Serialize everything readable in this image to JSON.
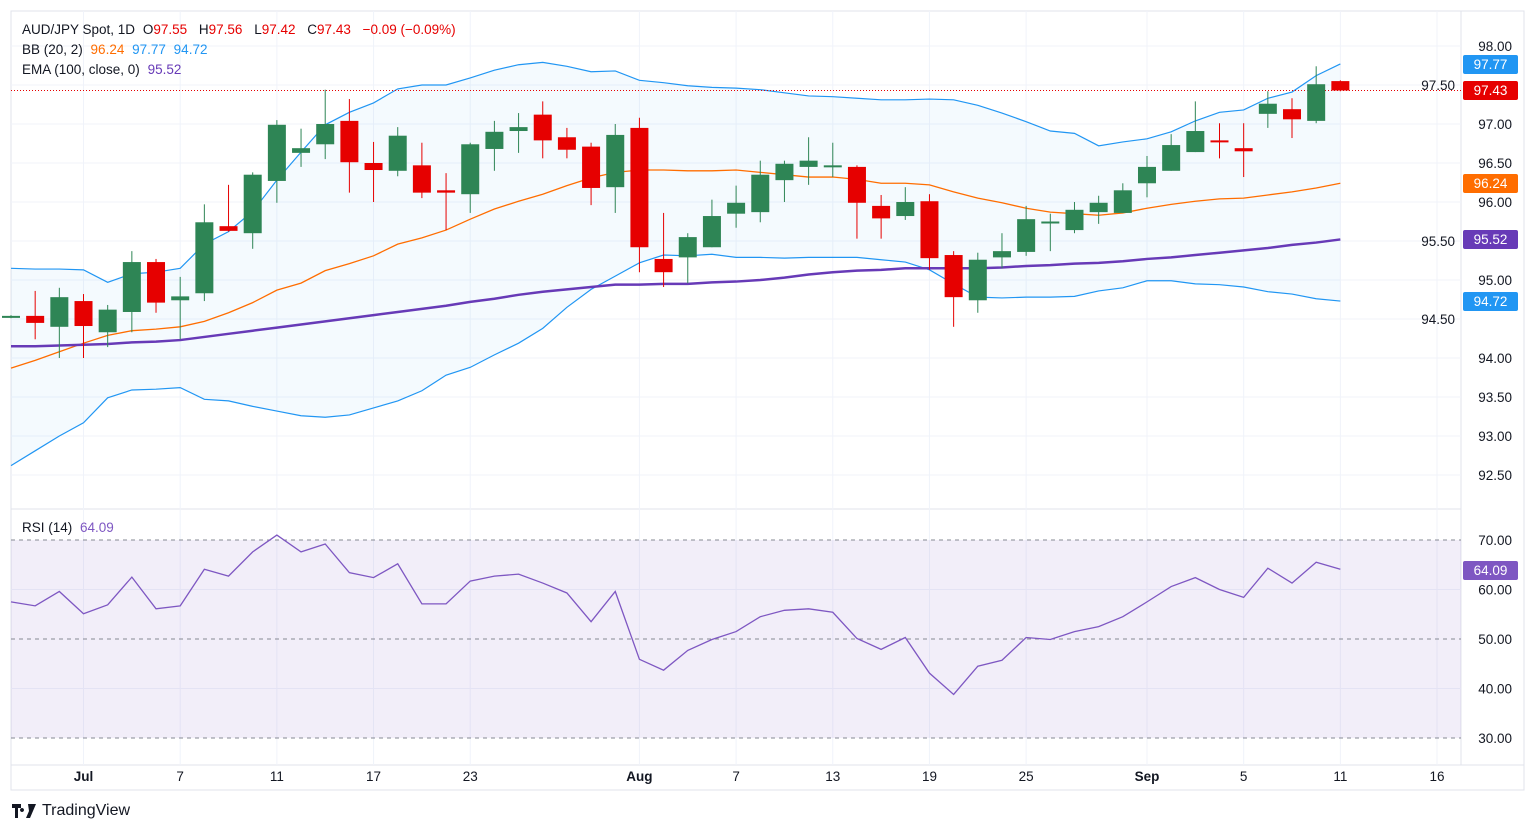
{
  "header": {
    "symbol": "AUD/JPY Spot, 1D",
    "open_label": "O",
    "open": "97.55",
    "high_label": "H",
    "high": "97.56",
    "low_label": "L",
    "low": "97.42",
    "close_label": "C",
    "close": "97.43",
    "change": "−0.09 (−0.09%)"
  },
  "indicators": {
    "bb": {
      "label": "BB (20, 2)",
      "basis": "96.24",
      "upper": "97.77",
      "lower": "94.72"
    },
    "ema": {
      "label": "EMA (100, close, 0)",
      "value": "95.52"
    },
    "rsi": {
      "label": "RSI (14)",
      "value": "64.09"
    }
  },
  "price_labels": {
    "upper": "97.77",
    "close": "97.43",
    "basis": "96.24",
    "ema": "95.52",
    "lower": "94.72",
    "rsi": "64.09"
  },
  "colors": {
    "up": "#2e8555",
    "down": "#e60000",
    "bb_upper_lower": "#2196f3",
    "bb_basis": "#ff6d00",
    "ema": "#673ab7",
    "rsi": "#7e57c2"
  },
  "logo": {
    "text": "TradingView"
  },
  "chart_data": [
    {
      "type": "candlestick",
      "title": "AUD/JPY Spot, 1D",
      "ylim": [
        92.2,
        98.3
      ],
      "y_ticks": [
        "98.00",
        "97.50",
        "97.00",
        "96.50",
        "96.00",
        "95.50",
        "95.00",
        "94.50",
        "94.00",
        "93.50",
        "93.00",
        "92.50"
      ],
      "x_ticks": [
        {
          "label": "Jul",
          "bar": 3,
          "bold": true
        },
        {
          "label": "7",
          "bar": 7
        },
        {
          "label": "11",
          "bar": 11
        },
        {
          "label": "17",
          "bar": 15
        },
        {
          "label": "23",
          "bar": 19
        },
        {
          "label": "Aug",
          "bar": 26,
          "bold": true
        },
        {
          "label": "7",
          "bar": 30
        },
        {
          "label": "13",
          "bar": 34
        },
        {
          "label": "19",
          "bar": 38
        },
        {
          "label": "25",
          "bar": 42
        },
        {
          "label": "Sep",
          "bar": 47,
          "bold": true
        },
        {
          "label": "5",
          "bar": 51
        },
        {
          "label": "11",
          "bar": 55
        },
        {
          "label": "16",
          "bar": 59
        }
      ],
      "ohlc": [
        [
          94.52,
          94.55,
          94.51,
          94.54
        ],
        [
          94.54,
          94.86,
          94.24,
          94.45
        ],
        [
          94.4,
          94.9,
          94.0,
          94.78
        ],
        [
          94.73,
          94.82,
          94.0,
          94.41
        ],
        [
          94.33,
          94.68,
          94.14,
          94.62
        ],
        [
          94.59,
          95.37,
          94.33,
          95.23
        ],
        [
          95.23,
          95.27,
          94.58,
          94.71
        ],
        [
          94.74,
          95.04,
          94.24,
          94.79
        ],
        [
          94.83,
          95.97,
          94.73,
          95.74
        ],
        [
          95.69,
          96.22,
          95.62,
          95.63
        ],
        [
          95.6,
          96.38,
          95.4,
          96.35
        ],
        [
          96.27,
          97.05,
          95.99,
          96.99
        ],
        [
          96.63,
          96.94,
          96.45,
          96.69
        ],
        [
          96.74,
          97.44,
          96.55,
          97.0
        ],
        [
          97.04,
          97.32,
          96.12,
          96.51
        ],
        [
          96.5,
          96.77,
          96.0,
          96.41
        ],
        [
          96.4,
          96.96,
          96.33,
          96.85
        ],
        [
          96.47,
          96.76,
          96.05,
          96.12
        ],
        [
          96.15,
          96.37,
          95.64,
          96.12
        ],
        [
          96.1,
          96.76,
          95.86,
          96.74
        ],
        [
          96.68,
          97.04,
          96.4,
          96.9
        ],
        [
          96.91,
          97.14,
          96.63,
          96.96
        ],
        [
          97.12,
          97.29,
          96.56,
          96.79
        ],
        [
          96.83,
          96.95,
          96.56,
          96.67
        ],
        [
          96.71,
          96.76,
          95.96,
          96.18
        ],
        [
          96.19,
          97.0,
          95.86,
          96.86
        ],
        [
          96.95,
          97.08,
          95.1,
          95.42
        ],
        [
          95.27,
          95.86,
          94.91,
          95.1
        ],
        [
          95.29,
          95.6,
          94.96,
          95.55
        ],
        [
          95.42,
          96.03,
          95.42,
          95.82
        ],
        [
          95.85,
          96.21,
          95.67,
          95.99
        ],
        [
          95.87,
          96.53,
          95.74,
          96.35
        ],
        [
          96.28,
          96.53,
          96.0,
          96.49
        ],
        [
          96.45,
          96.83,
          96.22,
          96.53
        ],
        [
          96.45,
          96.76,
          96.32,
          96.47
        ],
        [
          96.45,
          96.47,
          95.53,
          95.99
        ],
        [
          95.95,
          96.09,
          95.53,
          95.79
        ],
        [
          95.82,
          96.19,
          95.77,
          96.0
        ],
        [
          96.01,
          96.1,
          95.13,
          95.28
        ],
        [
          95.32,
          95.37,
          94.4,
          94.78
        ],
        [
          94.74,
          95.35,
          94.58,
          95.26
        ],
        [
          95.29,
          95.6,
          95.15,
          95.37
        ],
        [
          95.36,
          95.95,
          95.31,
          95.78
        ],
        [
          95.75,
          95.85,
          95.37,
          95.75
        ],
        [
          95.64,
          96.0,
          95.6,
          95.9
        ],
        [
          95.87,
          96.08,
          95.72,
          95.99
        ],
        [
          95.86,
          96.24,
          95.86,
          96.15
        ],
        [
          96.24,
          96.59,
          96.06,
          96.45
        ],
        [
          96.4,
          96.87,
          96.4,
          96.73
        ],
        [
          96.64,
          97.29,
          96.64,
          96.91
        ],
        [
          96.79,
          97.01,
          96.56,
          96.78
        ],
        [
          96.69,
          97.01,
          96.32,
          96.65
        ],
        [
          97.13,
          97.42,
          96.95,
          97.26
        ],
        [
          97.19,
          97.33,
          96.82,
          97.06
        ],
        [
          97.04,
          97.74,
          97.01,
          97.51
        ],
        [
          97.55,
          97.56,
          97.42,
          97.43
        ]
      ],
      "series": [
        {
          "name": "BB upper",
          "values": [
            95.15,
            95.14,
            95.14,
            95.13,
            94.97,
            95.08,
            95.1,
            95.15,
            95.46,
            95.62,
            95.88,
            96.28,
            96.64,
            96.99,
            97.15,
            97.27,
            97.45,
            97.5,
            97.5,
            97.59,
            97.69,
            97.76,
            97.79,
            97.74,
            97.67,
            97.68,
            97.56,
            97.53,
            97.49,
            97.47,
            97.46,
            97.44,
            97.4,
            97.36,
            97.35,
            97.33,
            97.31,
            97.31,
            97.32,
            97.31,
            97.24,
            97.14,
            97.03,
            96.91,
            96.88,
            96.72,
            96.77,
            96.81,
            96.9,
            97.04,
            97.15,
            97.18,
            97.33,
            97.41,
            97.62,
            97.77
          ]
        },
        {
          "name": "BB basis",
          "values": [
            93.87,
            93.97,
            94.08,
            94.19,
            94.29,
            94.35,
            94.37,
            94.4,
            94.47,
            94.58,
            94.71,
            94.87,
            94.96,
            95.12,
            95.21,
            95.31,
            95.46,
            95.54,
            95.64,
            95.78,
            95.91,
            96.01,
            96.1,
            96.21,
            96.31,
            96.38,
            96.41,
            96.41,
            96.4,
            96.4,
            96.41,
            96.38,
            96.35,
            96.32,
            96.32,
            96.29,
            96.24,
            96.24,
            96.22,
            96.13,
            96.05,
            95.99,
            95.92,
            95.87,
            95.85,
            95.83,
            95.86,
            95.92,
            95.97,
            96.01,
            96.04,
            96.05,
            96.09,
            96.13,
            96.18,
            96.24
          ]
        },
        {
          "name": "BB lower",
          "values": [
            92.62,
            92.81,
            93.0,
            93.17,
            93.49,
            93.59,
            93.6,
            93.62,
            93.47,
            93.45,
            93.38,
            93.32,
            93.26,
            93.24,
            93.27,
            93.36,
            93.45,
            93.58,
            93.78,
            93.88,
            94.04,
            94.19,
            94.38,
            94.65,
            94.88,
            95.05,
            95.22,
            95.32,
            95.31,
            95.33,
            95.29,
            95.29,
            95.28,
            95.29,
            95.29,
            95.29,
            95.26,
            95.23,
            95.13,
            94.95,
            94.78,
            94.77,
            94.78,
            94.78,
            94.79,
            94.86,
            94.9,
            94.99,
            94.99,
            94.95,
            94.94,
            94.91,
            94.85,
            94.82,
            94.76,
            94.73
          ]
        },
        {
          "name": "EMA (100, close, 0)",
          "values": [
            94.15,
            94.15,
            94.16,
            94.17,
            94.18,
            94.2,
            94.21,
            94.23,
            94.27,
            94.31,
            94.35,
            94.39,
            94.43,
            94.47,
            94.51,
            94.55,
            94.59,
            94.63,
            94.67,
            94.72,
            94.76,
            94.81,
            94.85,
            94.88,
            94.91,
            94.94,
            94.94,
            94.95,
            94.95,
            94.97,
            94.98,
            95.0,
            95.03,
            95.07,
            95.1,
            95.12,
            95.13,
            95.15,
            95.15,
            95.15,
            95.15,
            95.16,
            95.18,
            95.19,
            95.21,
            95.22,
            95.24,
            95.27,
            95.29,
            95.32,
            95.35,
            95.38,
            95.41,
            95.45,
            95.48,
            95.52
          ]
        }
      ]
    },
    {
      "type": "line",
      "title": "RSI (14)",
      "ylim": [
        28,
        73
      ],
      "y_ticks": [
        "70.00",
        "60.00",
        "50.00",
        "40.00",
        "30.00"
      ],
      "levels": [
        70,
        50,
        30
      ],
      "series": [
        {
          "name": "RSI (14)",
          "values": [
            57.5,
            56.7,
            59.6,
            55.1,
            56.9,
            62.5,
            56.1,
            56.7,
            64.1,
            62.7,
            67.6,
            71.0,
            67.6,
            69.2,
            63.4,
            62.4,
            65.2,
            57.1,
            57.1,
            61.7,
            62.7,
            63.1,
            61.3,
            59.3,
            53.5,
            59.6,
            45.9,
            43.7,
            47.7,
            49.9,
            51.5,
            54.5,
            55.8,
            56.1,
            55.4,
            50.1,
            47.9,
            50.3,
            43.1,
            38.8,
            44.5,
            45.7,
            50.3,
            49.9,
            51.5,
            52.5,
            54.5,
            57.5,
            60.6,
            62.4,
            60.0,
            58.4,
            64.3,
            61.3,
            65.5,
            64.09
          ]
        }
      ]
    }
  ]
}
